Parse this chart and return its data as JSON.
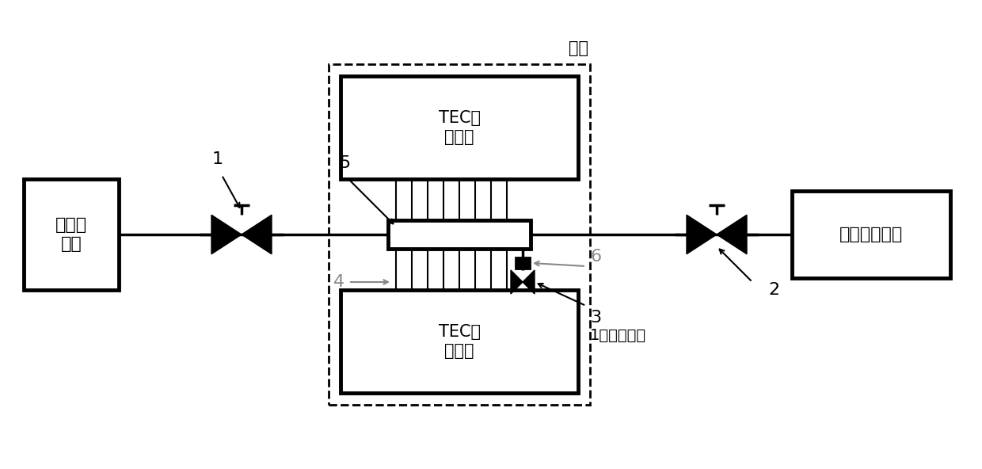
{
  "bg_color": "#ffffff",
  "line_color": "#000000",
  "dashed_color": "#000000",
  "gray_color": "#888888",
  "fig_width": 12.4,
  "fig_height": 5.92,
  "labels": {
    "chupai": "充排气\n系统",
    "jinshu": "碱金属发生器",
    "tec_top": "TEC控\n温系统",
    "tec_bot": "TEC控\n温系统",
    "wenxiang": "温箱",
    "label1": "1",
    "label2": "2",
    "label3": "3",
    "label4": "4",
    "label5": "5",
    "label6": "6",
    "label_atom": "1号原子气室"
  }
}
